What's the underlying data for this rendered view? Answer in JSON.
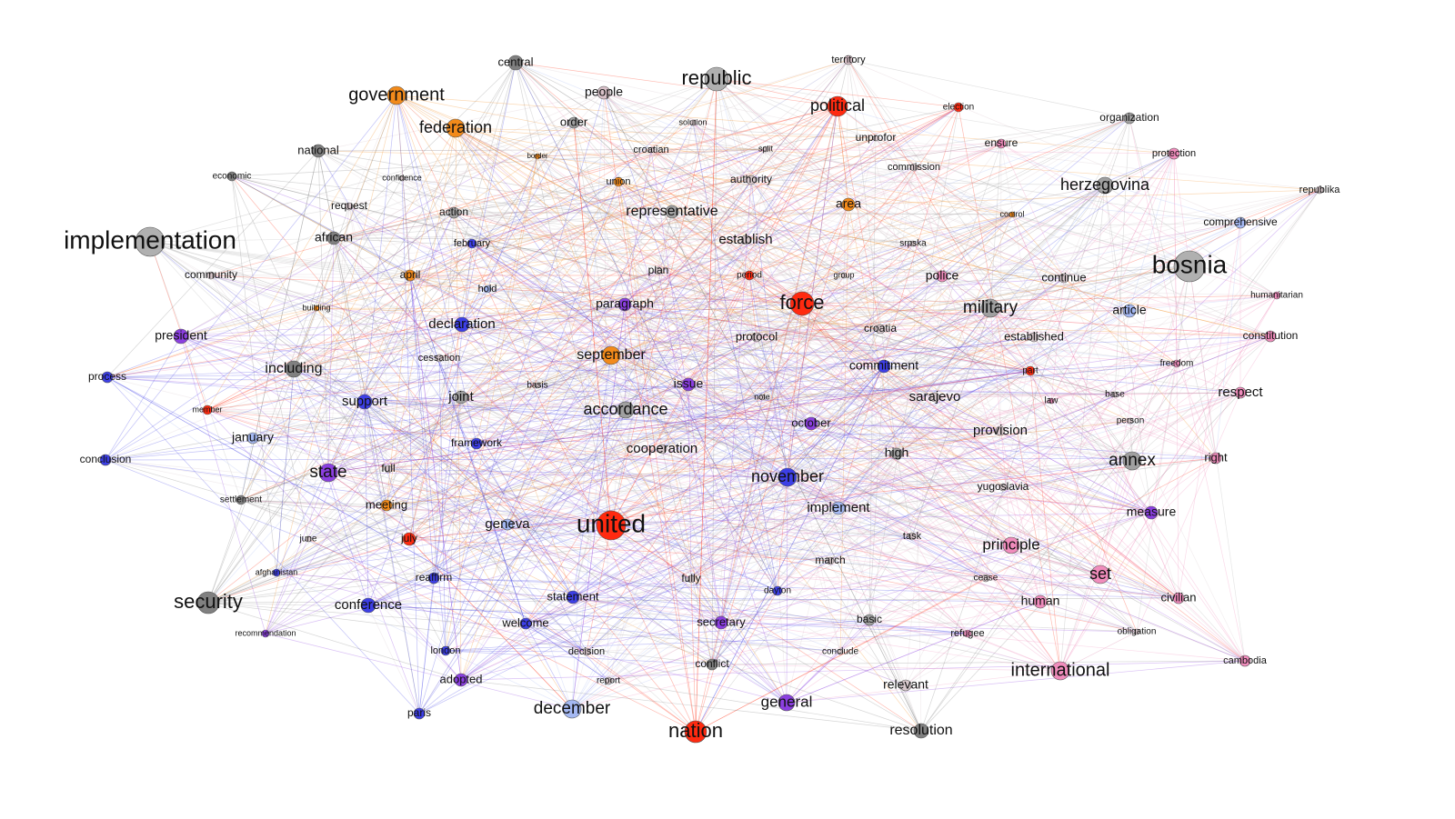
{
  "nodes": [
    {
      "label": "central",
      "color": "#808080"
    },
    {
      "label": "territory",
      "color": "#d8c0c8"
    },
    {
      "label": "republic",
      "color": "#b0b0b0"
    },
    {
      "label": "government",
      "color": "#f28a1a"
    },
    {
      "label": "people",
      "color": "#d8c0c8"
    },
    {
      "label": "political",
      "color": "#ff2a10"
    },
    {
      "label": "election",
      "color": "#ff2a10"
    },
    {
      "label": "organization",
      "color": "#a0a0a0"
    },
    {
      "label": "federation",
      "color": "#f28a1a"
    },
    {
      "label": "order",
      "color": "#a0a0a0"
    },
    {
      "label": "solution",
      "color": "#d8c8cc"
    },
    {
      "label": "unprofor",
      "color": "#d8c8cc"
    },
    {
      "label": "national",
      "color": "#808080"
    },
    {
      "label": "ensure",
      "color": "#f08cbc"
    },
    {
      "label": "protection",
      "color": "#f08cbc"
    },
    {
      "label": "border",
      "color": "#f28a1a"
    },
    {
      "label": "croatian",
      "color": "#d8c8cc"
    },
    {
      "label": "split",
      "color": "#d8c8cc"
    },
    {
      "label": "commission",
      "color": "#d8c8cc"
    },
    {
      "label": "economic",
      "color": "#808080"
    },
    {
      "label": "confidence",
      "color": "#d8c8cc"
    },
    {
      "label": "union",
      "color": "#f28a1a"
    },
    {
      "label": "authority",
      "color": "#d8c8cc"
    },
    {
      "label": "herzegovina",
      "color": "#a0a0a0"
    },
    {
      "label": "republika",
      "color": "#d8c8cc"
    },
    {
      "label": "request",
      "color": "#d8c8cc"
    },
    {
      "label": "action",
      "color": "#a0a0a0"
    },
    {
      "label": "representative",
      "color": "#a0a0a0"
    },
    {
      "label": "area",
      "color": "#f28a1a"
    },
    {
      "label": "control",
      "color": "#f28a1a"
    },
    {
      "label": "comprehensive",
      "color": "#a4b8f2"
    },
    {
      "label": "implementation",
      "color": "#b0b0b0"
    },
    {
      "label": "african",
      "color": "#808080"
    },
    {
      "label": "february",
      "color": "#3d3fe6"
    },
    {
      "label": "establish",
      "color": "#d8c8cc"
    },
    {
      "label": "srpska",
      "color": "#d8c8cc"
    },
    {
      "label": "community",
      "color": "#d8c8cc"
    },
    {
      "label": "april",
      "color": "#f28a1a"
    },
    {
      "label": "plan",
      "color": "#d8c8cc"
    },
    {
      "label": "period",
      "color": "#ff2a10"
    },
    {
      "label": "group",
      "color": "#d8c8cc"
    },
    {
      "label": "police",
      "color": "#f08cbc"
    },
    {
      "label": "continue",
      "color": "#d8c8cc"
    },
    {
      "label": "bosnia",
      "color": "#b0b0b0"
    },
    {
      "label": "hold",
      "color": "#a4b8f2"
    },
    {
      "label": "building",
      "color": "#f28a1a"
    },
    {
      "label": "paragraph",
      "color": "#8b3fe0"
    },
    {
      "label": "force",
      "color": "#ff2a10"
    },
    {
      "label": "military",
      "color": "#a0a0a0"
    },
    {
      "label": "humanitarian",
      "color": "#f08cbc"
    },
    {
      "label": "article",
      "color": "#a4b8f2"
    },
    {
      "label": "declaration",
      "color": "#3d3fe6"
    },
    {
      "label": "president",
      "color": "#8b3fe0"
    },
    {
      "label": "protocol",
      "color": "#d8c8cc"
    },
    {
      "label": "croatia",
      "color": "#d8c8cc"
    },
    {
      "label": "established",
      "color": "#d8c8cc"
    },
    {
      "label": "constitution",
      "color": "#f08cbc"
    },
    {
      "label": "including",
      "color": "#808080"
    },
    {
      "label": "cessation",
      "color": "#d8c8cc"
    },
    {
      "label": "september",
      "color": "#f28a1a"
    },
    {
      "label": "commitment",
      "color": "#3d3fe6"
    },
    {
      "label": "part",
      "color": "#ff2a10"
    },
    {
      "label": "freedom",
      "color": "#f08cbc"
    },
    {
      "label": "process",
      "color": "#3d3fe6"
    },
    {
      "label": "basis",
      "color": "#d8c8cc"
    },
    {
      "label": "issue",
      "color": "#8b3fe0"
    },
    {
      "label": "note",
      "color": "#d8c8cc"
    },
    {
      "label": "law",
      "color": "#f08cbc"
    },
    {
      "label": "base",
      "color": "#d8c8cc"
    },
    {
      "label": "respect",
      "color": "#f08cbc"
    },
    {
      "label": "member",
      "color": "#ff2a10"
    },
    {
      "label": "support",
      "color": "#3d3fe6"
    },
    {
      "label": "joint",
      "color": "#a0a0a0"
    },
    {
      "label": "accordance",
      "color": "#a0a0a0"
    },
    {
      "label": "sarajevo",
      "color": "#d8c8cc"
    },
    {
      "label": "person",
      "color": "#d8c8cc"
    },
    {
      "label": "october",
      "color": "#8b3fe0"
    },
    {
      "label": "provision",
      "color": "#d8c8cc"
    },
    {
      "label": "january",
      "color": "#a4b8f2"
    },
    {
      "label": "framework",
      "color": "#3d3fe6"
    },
    {
      "label": "cooperation",
      "color": "#d8c8cc"
    },
    {
      "label": "high",
      "color": "#a0a0a0"
    },
    {
      "label": "annex",
      "color": "#a0a0a0"
    },
    {
      "label": "right",
      "color": "#f08cbc"
    },
    {
      "label": "conclusion",
      "color": "#3d3fe6"
    },
    {
      "label": "state",
      "color": "#8b3fe0"
    },
    {
      "label": "full",
      "color": "#d8c8cc"
    },
    {
      "label": "november",
      "color": "#3d3fe6"
    },
    {
      "label": "settlement",
      "color": "#808080"
    },
    {
      "label": "meeting",
      "color": "#f28a1a"
    },
    {
      "label": "yugoslavia",
      "color": "#d8c8cc"
    },
    {
      "label": "implement",
      "color": "#a4b8f2"
    },
    {
      "label": "united",
      "color": "#ff2a10"
    },
    {
      "label": "geneva",
      "color": "#a4b8f2"
    },
    {
      "label": "measure",
      "color": "#8b3fe0"
    },
    {
      "label": "june",
      "color": "#d8c8cc"
    },
    {
      "label": "july",
      "color": "#ff2a10"
    },
    {
      "label": "task",
      "color": "#d8c8cc"
    },
    {
      "label": "principle",
      "color": "#f08cbc"
    },
    {
      "label": "march",
      "color": "#d8c8cc"
    },
    {
      "label": "afghanistan",
      "color": "#3d3fe6"
    },
    {
      "label": "reaffirm",
      "color": "#3d3fe6"
    },
    {
      "label": "fully",
      "color": "#d8c8cc"
    },
    {
      "label": "cease",
      "color": "#d8c8cc"
    },
    {
      "label": "set",
      "color": "#f08cbc"
    },
    {
      "label": "security",
      "color": "#808080"
    },
    {
      "label": "conference",
      "color": "#3d3fe6"
    },
    {
      "label": "statement",
      "color": "#3d3fe6"
    },
    {
      "label": "dayton",
      "color": "#3d3fe6"
    },
    {
      "label": "human",
      "color": "#f08cbc"
    },
    {
      "label": "civilian",
      "color": "#f08cbc"
    },
    {
      "label": "welcome",
      "color": "#3d3fe6"
    },
    {
      "label": "secretary",
      "color": "#8b3fe0"
    },
    {
      "label": "basic",
      "color": "#a0a0a0"
    },
    {
      "label": "recommendation",
      "color": "#8b3fe0"
    },
    {
      "label": "obligation",
      "color": "#d8c8cc"
    },
    {
      "label": "london",
      "color": "#3d3fe6"
    },
    {
      "label": "decision",
      "color": "#d8c8cc"
    },
    {
      "label": "conclude",
      "color": "#d8c8cc"
    },
    {
      "label": "refugee",
      "color": "#f08cbc"
    },
    {
      "label": "cambodia",
      "color": "#f08cbc"
    },
    {
      "label": "conflict",
      "color": "#808080"
    },
    {
      "label": "adopted",
      "color": "#8b3fe0"
    },
    {
      "label": "report",
      "color": "#d8c8cc"
    },
    {
      "label": "relevant",
      "color": "#d8c8cc"
    },
    {
      "label": "international",
      "color": "#f08cbc"
    },
    {
      "label": "december",
      "color": "#a4b8f2"
    },
    {
      "label": "general",
      "color": "#8b3fe0"
    },
    {
      "label": "paris",
      "color": "#3d3fe6"
    },
    {
      "label": "nation",
      "color": "#ff2a10"
    },
    {
      "label": "resolution",
      "color": "#808080"
    }
  ]
}
